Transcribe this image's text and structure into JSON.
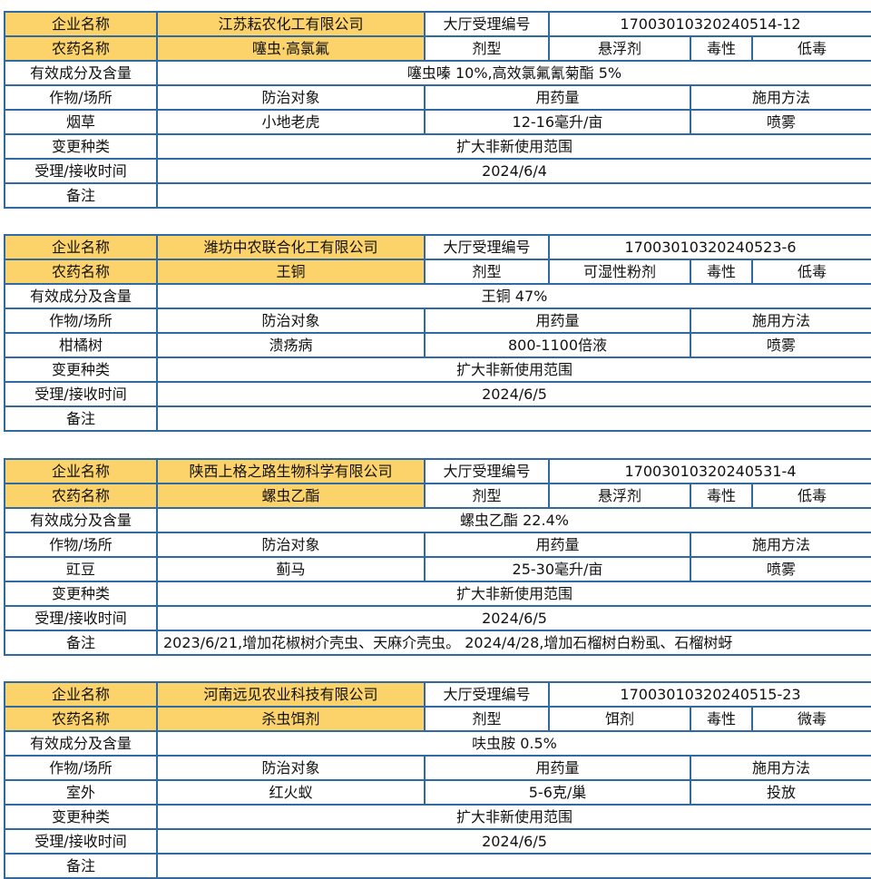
{
  "labels": {
    "company": "企业名称",
    "reg_no": "大厅受理编号",
    "pesticide": "农药名称",
    "formulation": "剂型",
    "toxicity": "毒性",
    "ingredients": "有效成分及含量",
    "crop": "作物/场所",
    "target": "防治对象",
    "dosage": "用药量",
    "method": "施用方法",
    "change_type": "变更种类",
    "received": "受理/接收时间",
    "note": "备注"
  },
  "records": [
    {
      "company": "江苏耘农化工有限公司",
      "reg_no": "17003010320240514-12",
      "pesticide": "噻虫·高氯氟",
      "formulation": "悬浮剂",
      "toxicity": "低毒",
      "ingredients": "噻虫嗪 10%,高效氯氟氰菊酯 5%",
      "crop": "烟草",
      "target": "小地老虎",
      "dosage": "12-16毫升/亩",
      "method": "喷雾",
      "change_type": "扩大非新使用范围",
      "received": "2024/6/4",
      "note": ""
    },
    {
      "company": "潍坊中农联合化工有限公司",
      "reg_no": "17003010320240523-6",
      "pesticide": "王铜",
      "formulation": "可湿性粉剂",
      "toxicity": "低毒",
      "ingredients": "王铜 47%",
      "crop": "柑橘树",
      "target": "溃疡病",
      "dosage": "800-1100倍液",
      "method": "喷雾",
      "change_type": "扩大非新使用范围",
      "received": "2024/6/5",
      "note": ""
    },
    {
      "company": "陕西上格之路生物科学有限公司",
      "reg_no": "17003010320240531-4",
      "pesticide": "螺虫乙酯",
      "formulation": "悬浮剂",
      "toxicity": "低毒",
      "ingredients": "螺虫乙酯 22.4%",
      "crop": "豇豆",
      "target": "蓟马",
      "dosage": "25-30毫升/亩",
      "method": "喷雾",
      "change_type": "扩大非新使用范围",
      "received": "2024/6/5",
      "note": "2023/6/21,增加花椒树介壳虫、天麻介壳虫。 2024/4/28,增加石榴树白粉虱、石榴树蚜"
    },
    {
      "company": "河南远见农业科技有限公司",
      "reg_no": "17003010320240515-23",
      "pesticide": "杀虫饵剂",
      "formulation": "饵剂",
      "toxicity": "微毒",
      "ingredients": "呋虫胺 0.5%",
      "crop": "室外",
      "target": "红火蚁",
      "dosage": "5-6克/巢",
      "method": "投放",
      "change_type": "扩大非新使用范围",
      "received": "2024/6/5",
      "note": ""
    }
  ]
}
